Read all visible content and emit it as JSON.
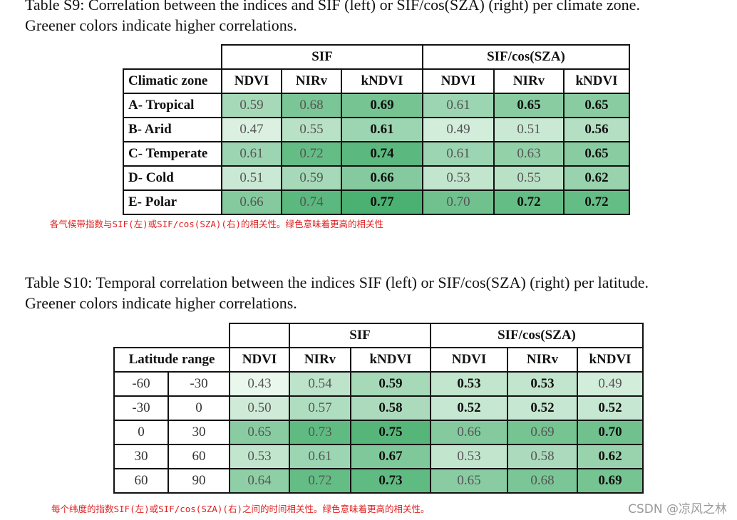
{
  "table9": {
    "caption_line1": "Table S9: Correlation between the indices and SIF (left) or SIF/cos(SZA) (right) per climate zone.",
    "caption_line2": "Greener colors indicate higher correlations.",
    "group_left": "SIF",
    "group_right": "SIF/cos(SZA)",
    "row_header": "Climatic zone",
    "columns": [
      "NDVI",
      "NIRv",
      "kNDVI",
      "NDVI",
      "NIRv",
      "kNDVI"
    ],
    "rows": [
      {
        "label": "A- Tropical",
        "values": [
          "0.59",
          "0.68",
          "0.69",
          "0.61",
          "0.65",
          "0.65"
        ]
      },
      {
        "label": "B- Arid",
        "values": [
          "0.47",
          "0.55",
          "0.61",
          "0.49",
          "0.51",
          "0.56"
        ]
      },
      {
        "label": "C- Temperate",
        "values": [
          "0.61",
          "0.72",
          "0.74",
          "0.61",
          "0.63",
          "0.65"
        ]
      },
      {
        "label": "D- Cold",
        "values": [
          "0.51",
          "0.59",
          "0.66",
          "0.53",
          "0.55",
          "0.62"
        ]
      },
      {
        "label": "E- Polar",
        "values": [
          "0.66",
          "0.74",
          "0.77",
          "0.70",
          "0.72",
          "0.72"
        ]
      }
    ],
    "note": "各气候带指数与SIF(左)或SIF/cos(SZA)(右)的相关性。绿色意味着更高的相关性"
  },
  "table10": {
    "caption_line1": "Table S10: Temporal correlation between the indices SIF (left) or SIF/cos(SZA) (right) per latitude.",
    "caption_line2": "Greener colors indicate higher correlations.",
    "group_left": "SIF",
    "group_right": "SIF/cos(SZA)",
    "row_header": "Latitude range",
    "columns": [
      "NDVI",
      "NIRv",
      "kNDVI",
      "NDVI",
      "NIRv",
      "kNDVI"
    ],
    "rows": [
      {
        "from": "-60",
        "to": "-30",
        "values": [
          "0.43",
          "0.54",
          "0.59",
          "0.53",
          "0.53",
          "0.49"
        ]
      },
      {
        "from": "-30",
        "to": "0",
        "values": [
          "0.50",
          "0.57",
          "0.58",
          "0.52",
          "0.52",
          "0.52"
        ]
      },
      {
        "from": "0",
        "to": "30",
        "values": [
          "0.65",
          "0.73",
          "0.75",
          "0.66",
          "0.69",
          "0.70"
        ]
      },
      {
        "from": "30",
        "to": "60",
        "values": [
          "0.53",
          "0.61",
          "0.67",
          "0.53",
          "0.58",
          "0.62"
        ]
      },
      {
        "from": "60",
        "to": "90",
        "values": [
          "0.64",
          "0.72",
          "0.73",
          "0.65",
          "0.68",
          "0.69"
        ]
      }
    ],
    "note": "每个纬度的指数SIF(左)或SIF/cos(SZA)(右)之间的时间相关性。绿色意味着更高的相关性。"
  },
  "watermark": "CSDN @凉风之林"
}
